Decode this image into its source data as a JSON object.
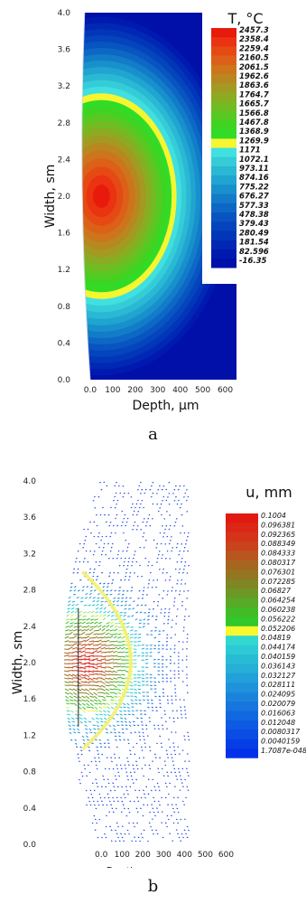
{
  "captions": {
    "a": "a",
    "b": "b"
  },
  "chart_data": [
    {
      "type": "heatmap",
      "title": "",
      "legend_title": "T, °C",
      "xlabel": "Depth, μm",
      "ylabel": "Width, sm",
      "x_ticks": [
        "0.0",
        "100",
        "200",
        "300",
        "400",
        "500",
        "600"
      ],
      "x_tick_values": [
        0,
        100,
        200,
        300,
        400,
        500,
        600
      ],
      "y_ticks": [
        "0.0",
        "0.4",
        "0.8",
        "1.2",
        "1.6",
        "2.0",
        "2.4",
        "2.8",
        "3.2",
        "3.6",
        "4.0"
      ],
      "y_tick_values": [
        0.0,
        0.4,
        0.8,
        1.2,
        1.6,
        2.0,
        2.4,
        2.8,
        3.2,
        3.6,
        4.0
      ],
      "xlim": [
        -60,
        650
      ],
      "ylim": [
        0.0,
        4.0
      ],
      "hotspot": {
        "center_x": 50,
        "center_y": 2.0,
        "max": 2457.3,
        "min": -16.35
      },
      "legend": {
        "placement": "top-right",
        "labels": [
          "2457.3",
          "2358.4",
          "2259.4",
          "2160.5",
          "2061.5",
          "1962.6",
          "1863.6",
          "1764.7",
          "1665.7",
          "1566.8",
          "1467.8",
          "1368.9",
          "1269.9",
          "1171",
          "1072.1",
          "973.11",
          "874.16",
          "775.22",
          "676.27",
          "577.33",
          "478.38",
          "379.43",
          "280.49",
          "181.54",
          "82.596",
          "-16.35"
        ],
        "colors": [
          "#e81a0c",
          "#ea3310",
          "#e64a14",
          "#dc6018",
          "#cd741c",
          "#b98720",
          "#a39a22",
          "#8bab22",
          "#72bb22",
          "#58c922",
          "#40d422",
          "#30dc28",
          "#f5f530",
          "#40e0e0",
          "#35ccd8",
          "#2ab8d4",
          "#20a4d0",
          "#1890cc",
          "#127cc8",
          "#0c68c4",
          "#0854c0",
          "#0444bc",
          "#0236b8",
          "#0028b4",
          "#001ab0",
          "#0010a8"
        ]
      }
    },
    {
      "type": "scatter",
      "title": "",
      "legend_title": "u, mm",
      "xlabel": "Depth, μm",
      "ylabel": "Width, sm",
      "x_ticks": [
        "0.0",
        "100",
        "200",
        "300",
        "400",
        "500",
        "600"
      ],
      "x_tick_values": [
        0,
        100,
        200,
        300,
        400,
        500,
        600
      ],
      "y_ticks": [
        "0.0",
        "0.4",
        "0.8",
        "1.2",
        "1.6",
        "2.0",
        "2.4",
        "2.8",
        "3.2",
        "3.6",
        "4.0"
      ],
      "y_tick_values": [
        0.0,
        0.4,
        0.8,
        1.2,
        1.6,
        2.0,
        2.4,
        2.8,
        3.2,
        3.6,
        4.0
      ],
      "xlim": [
        -170,
        650
      ],
      "ylim": [
        0.0,
        4.0
      ],
      "legend": {
        "placement": "top-right",
        "labels": [
          "0.1004",
          "0.096381",
          "0.092365",
          "0.088349",
          "0.084333",
          "0.080317",
          "0.076301",
          "0.072285",
          "0.06827",
          "0.064254",
          "0.060238",
          "0.056222",
          "0.052206",
          "0.04819",
          "0.044174",
          "0.040159",
          "0.036143",
          "0.032127",
          "0.028111",
          "0.024095",
          "0.020079",
          "0.016063",
          "0.012048",
          "0.0080317",
          "0.0040159",
          "1.7087e-048"
        ],
        "colors": [
          "#e01a12",
          "#dc2616",
          "#d4341a",
          "#c8441c",
          "#b8561e",
          "#a66620",
          "#947622",
          "#808624",
          "#6c9826",
          "#56aa26",
          "#42bc26",
          "#30c82a",
          "#f8f830",
          "#30d8d0",
          "#2ccad4",
          "#28bcd4",
          "#26aed6",
          "#22a0d8",
          "#1e92da",
          "#1a84dc",
          "#1676de",
          "#1268e0",
          "#0e5ae2",
          "#0a4ce4",
          "#063ee6",
          "#0230e8"
        ]
      }
    }
  ]
}
